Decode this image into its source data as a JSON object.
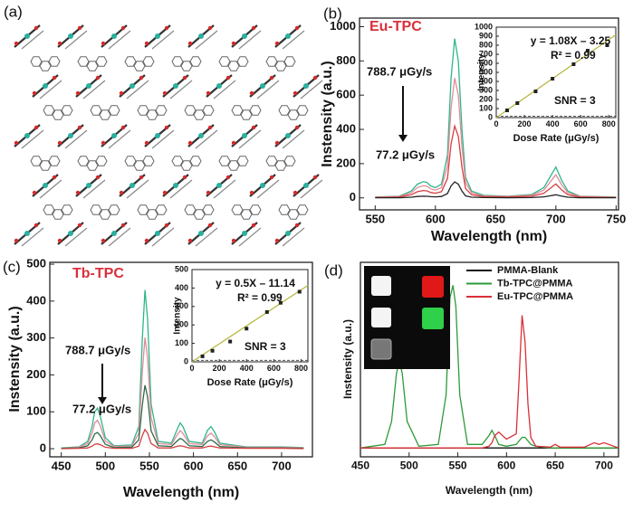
{
  "panel_a": {
    "label": "(a)"
  },
  "chart_data": [
    {
      "type": "line",
      "label": "(b)",
      "title": "Eu-TPC",
      "x_label": "Wavelength (nm)",
      "y_label": "Instensity (a.u.)",
      "xlim": [
        537,
        752
      ],
      "xticks": [
        550,
        600,
        650,
        700,
        750
      ],
      "ylim": [
        -70,
        1050
      ],
      "yticks": [
        0,
        200,
        400,
        600,
        800,
        1000
      ],
      "x": [
        550,
        570,
        580,
        585,
        590,
        593,
        596,
        600,
        605,
        610,
        613,
        616,
        619,
        622,
        625,
        630,
        640,
        660,
        680,
        690,
        695,
        700,
        705,
        710,
        720,
        750
      ],
      "series": [
        {
          "color": "#2fb68a",
          "values": [
            5,
            10,
            40,
            80,
            95,
            90,
            70,
            60,
            80,
            250,
            700,
            930,
            800,
            400,
            120,
            40,
            15,
            10,
            20,
            60,
            120,
            180,
            100,
            40,
            10,
            5
          ]
        },
        {
          "color": "#e28c9a",
          "values": [
            4,
            8,
            30,
            60,
            71,
            68,
            53,
            45,
            60,
            188,
            525,
            700,
            600,
            300,
            90,
            30,
            11,
            8,
            15,
            45,
            90,
            135,
            75,
            30,
            8,
            4
          ]
        },
        {
          "color": "#d44040",
          "values": [
            2,
            5,
            18,
            36,
            43,
            41,
            32,
            27,
            36,
            113,
            315,
            420,
            360,
            180,
            54,
            18,
            7,
            5,
            9,
            27,
            54,
            81,
            45,
            18,
            5,
            2
          ]
        },
        {
          "color": "#222222",
          "values": [
            1,
            1,
            4,
            8,
            10,
            9,
            7,
            6,
            8,
            25,
            70,
            93,
            80,
            40,
            12,
            4,
            2,
            1,
            2,
            6,
            12,
            18,
            10,
            4,
            1,
            1
          ]
        }
      ],
      "annotations": [
        "788.7 μGy/s",
        "77.2 μGy/s"
      ],
      "inset": {
        "type": "scatter",
        "x_label": "Dose Rate (μGy/s)",
        "y_label": "Intensity",
        "xlim": [
          0,
          850
        ],
        "xticks": [
          0,
          200,
          400,
          600,
          800
        ],
        "ylim": [
          0,
          1000
        ],
        "yticks": [
          0,
          100,
          200,
          300,
          400,
          500,
          600,
          700,
          800,
          900,
          1000
        ],
        "x": [
          77.2,
          150,
          280,
          400,
          550,
          650,
          788.7
        ],
        "values": [
          80,
          160,
          290,
          430,
          590,
          740,
          800
        ],
        "color": "#222222",
        "fit": {
          "x": [
            0,
            850
          ],
          "values": [
            0,
            915
          ],
          "color": "#b5b53a"
        },
        "equation": "y = 1.08X – 3.25",
        "r_squared": "R² = 0.99",
        "snr_label": "SNR = 3",
        "snr_level": 15
      }
    },
    {
      "type": "line",
      "label": "(c)",
      "title": "Tb-TPC",
      "x_label": "Wavelength (nm)",
      "y_label": "Instensity (a.u.)",
      "xlim": [
        437,
        735
      ],
      "xticks": [
        450,
        500,
        550,
        600,
        650,
        700
      ],
      "ylim": [
        -22,
        505
      ],
      "yticks": [
        0,
        100,
        200,
        300,
        400,
        500
      ],
      "x": [
        450,
        470,
        480,
        485,
        488,
        491,
        494,
        500,
        510,
        530,
        538,
        542,
        545,
        548,
        552,
        560,
        575,
        582,
        585,
        588,
        595,
        610,
        616,
        620,
        624,
        630,
        660,
        700,
        725
      ],
      "series": [
        {
          "color": "#2fb68a",
          "values": [
            2,
            5,
            20,
            60,
            100,
            110,
            90,
            30,
            8,
            10,
            60,
            300,
            430,
            350,
            120,
            20,
            15,
            55,
            70,
            60,
            20,
            15,
            50,
            60,
            45,
            15,
            5,
            5,
            3
          ]
        },
        {
          "color": "#e28c9a",
          "values": [
            1,
            4,
            14,
            42,
            70,
            77,
            63,
            21,
            6,
            7,
            42,
            210,
            301,
            245,
            84,
            14,
            11,
            39,
            49,
            42,
            14,
            11,
            35,
            42,
            32,
            11,
            4,
            4,
            2
          ]
        },
        {
          "color": "#2b6b4a",
          "values": [
            1,
            2,
            8,
            24,
            40,
            44,
            36,
            12,
            3,
            4,
            24,
            120,
            172,
            140,
            48,
            8,
            6,
            22,
            28,
            24,
            8,
            6,
            20,
            24,
            18,
            6,
            2,
            2,
            1
          ]
        },
        {
          "color": "#d44040",
          "values": [
            0,
            1,
            2,
            7,
            12,
            13,
            11,
            4,
            1,
            1,
            7,
            36,
            52,
            42,
            14,
            2,
            2,
            7,
            8,
            7,
            2,
            2,
            6,
            7,
            5,
            2,
            1,
            1,
            0
          ]
        }
      ],
      "annotations": [
        "788.7 μGy/s",
        "77.2 μGy/s"
      ],
      "inset": {
        "type": "scatter",
        "x_label": "Dose Rate (μGy/s)",
        "y_label": "Intensity",
        "xlim": [
          0,
          850
        ],
        "xticks": [
          0,
          200,
          400,
          600,
          800
        ],
        "ylim": [
          0,
          500
        ],
        "yticks": [
          0,
          100,
          200,
          300,
          400,
          500
        ],
        "x": [
          77.2,
          150,
          280,
          400,
          550,
          650,
          788.7
        ],
        "values": [
          30,
          60,
          110,
          180,
          270,
          320,
          380
        ],
        "color": "#222222",
        "fit": {
          "x": [
            0,
            850
          ],
          "values": [
            0,
            414
          ],
          "color": "#b5b53a"
        },
        "equation": "y = 0.5X – 11.14",
        "r_squared": "R² = 0.99",
        "snr_label": "SNR = 3",
        "snr_level": 8
      }
    },
    {
      "type": "line",
      "label": "(d)",
      "x_label": "Wavelength (nm)",
      "y_label": "Instensity (a.u.)",
      "xlim": [
        450,
        715
      ],
      "xticks": [
        450,
        500,
        550,
        600,
        650,
        700
      ],
      "ylim": [
        -0.05,
        1.05
      ],
      "legend": "upper right",
      "x": [
        450,
        475,
        482,
        487,
        490,
        493,
        498,
        510,
        530,
        538,
        542,
        545,
        548,
        552,
        560,
        575,
        582,
        585,
        588,
        592,
        600,
        610,
        613,
        616,
        619,
        622,
        625,
        630,
        645,
        650,
        655,
        680,
        690,
        695,
        700,
        715
      ],
      "series": [
        {
          "name": "PMMA-Blank",
          "color": "#111111",
          "values": [
            0,
            0,
            0,
            0,
            0,
            0,
            0,
            0,
            0,
            0,
            0,
            0,
            0,
            0,
            0,
            0,
            0,
            0,
            0,
            0,
            0,
            0,
            0,
            0,
            0,
            0,
            0,
            0,
            0,
            0,
            0,
            0,
            0,
            0,
            0,
            0
          ]
        },
        {
          "name": "Tb-TPC@PMMA",
          "color": "#2e9a36",
          "values": [
            0,
            0.02,
            0.15,
            0.42,
            0.5,
            0.42,
            0.15,
            0.01,
            0.02,
            0.3,
            0.85,
            0.92,
            0.8,
            0.3,
            0.02,
            0.02,
            0.07,
            0.1,
            0.07,
            0.02,
            0.01,
            0.02,
            0.04,
            0.06,
            0.06,
            0.04,
            0.02,
            0.01,
            0,
            0,
            0,
            0,
            0,
            0,
            0,
            0
          ]
        },
        {
          "name": "Eu-TPC@PMMA",
          "color": "#d9303a",
          "values": [
            0,
            0,
            0,
            0,
            0,
            0,
            0,
            0,
            0,
            0,
            0,
            0,
            0,
            0,
            0,
            0,
            0.01,
            0.03,
            0.07,
            0.09,
            0.05,
            0.08,
            0.4,
            0.75,
            0.6,
            0.25,
            0.06,
            0.01,
            0.005,
            0.02,
            0.005,
            0.005,
            0.03,
            0.02,
            0.03,
            0
          ]
        }
      ]
    }
  ]
}
